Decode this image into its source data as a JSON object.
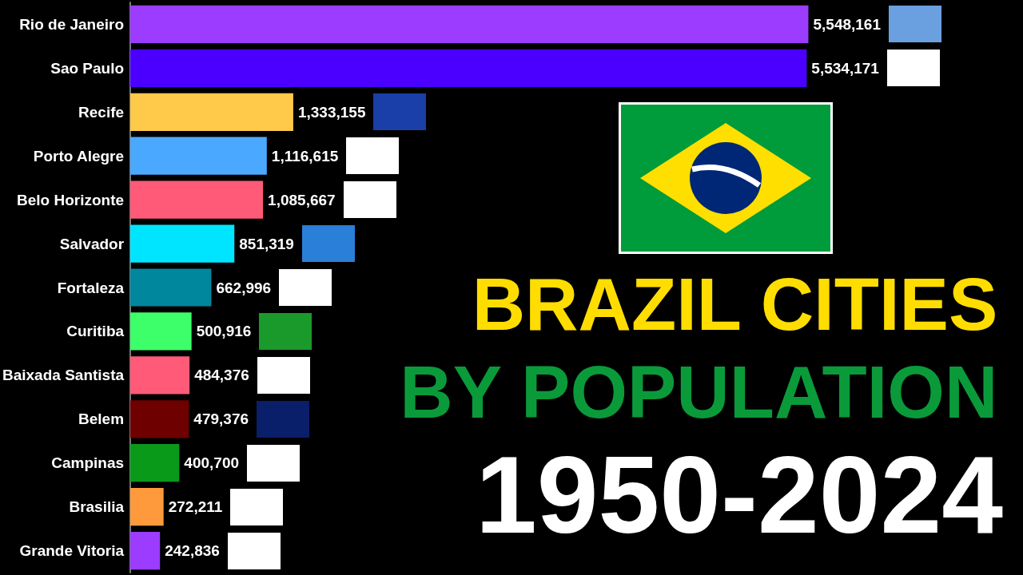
{
  "chart_data": {
    "type": "bar",
    "orientation": "horizontal",
    "title": "BRAZIL CITIES",
    "subtitle": "BY POPULATION",
    "annotations": [
      "1950-2024"
    ],
    "categories": [
      "Rio de Janeiro",
      "Sao Paulo",
      "Recife",
      "Porto Alegre",
      "Belo Horizonte",
      "Salvador",
      "Fortaleza",
      "Curitiba",
      "Baixada Santista",
      "Belem",
      "Campinas",
      "Brasilia",
      "Grande Vitoria"
    ],
    "values": [
      5548161,
      5534171,
      1333155,
      1116615,
      1085667,
      851319,
      662996,
      500916,
      484376,
      479376,
      400700,
      272211,
      242836
    ],
    "colors": [
      "#9b3cff",
      "#4b00ff",
      "#ffc94a",
      "#4ba8ff",
      "#ff5a78",
      "#00e5ff",
      "#00879e",
      "#3dff6a",
      "#ff5a78",
      "#6e0000",
      "#0a9a1a",
      "#ff9a3c",
      "#9b3cff"
    ],
    "value_labels": [
      "5,548,161",
      "5,534,171",
      "1,333,155",
      "1,116,615",
      "1,085,667",
      "851,319",
      "662,996",
      "500,916",
      "484,376",
      "479,376",
      "400,700",
      "272,211",
      "242,836"
    ],
    "tick_labels": "y"
  }
}
